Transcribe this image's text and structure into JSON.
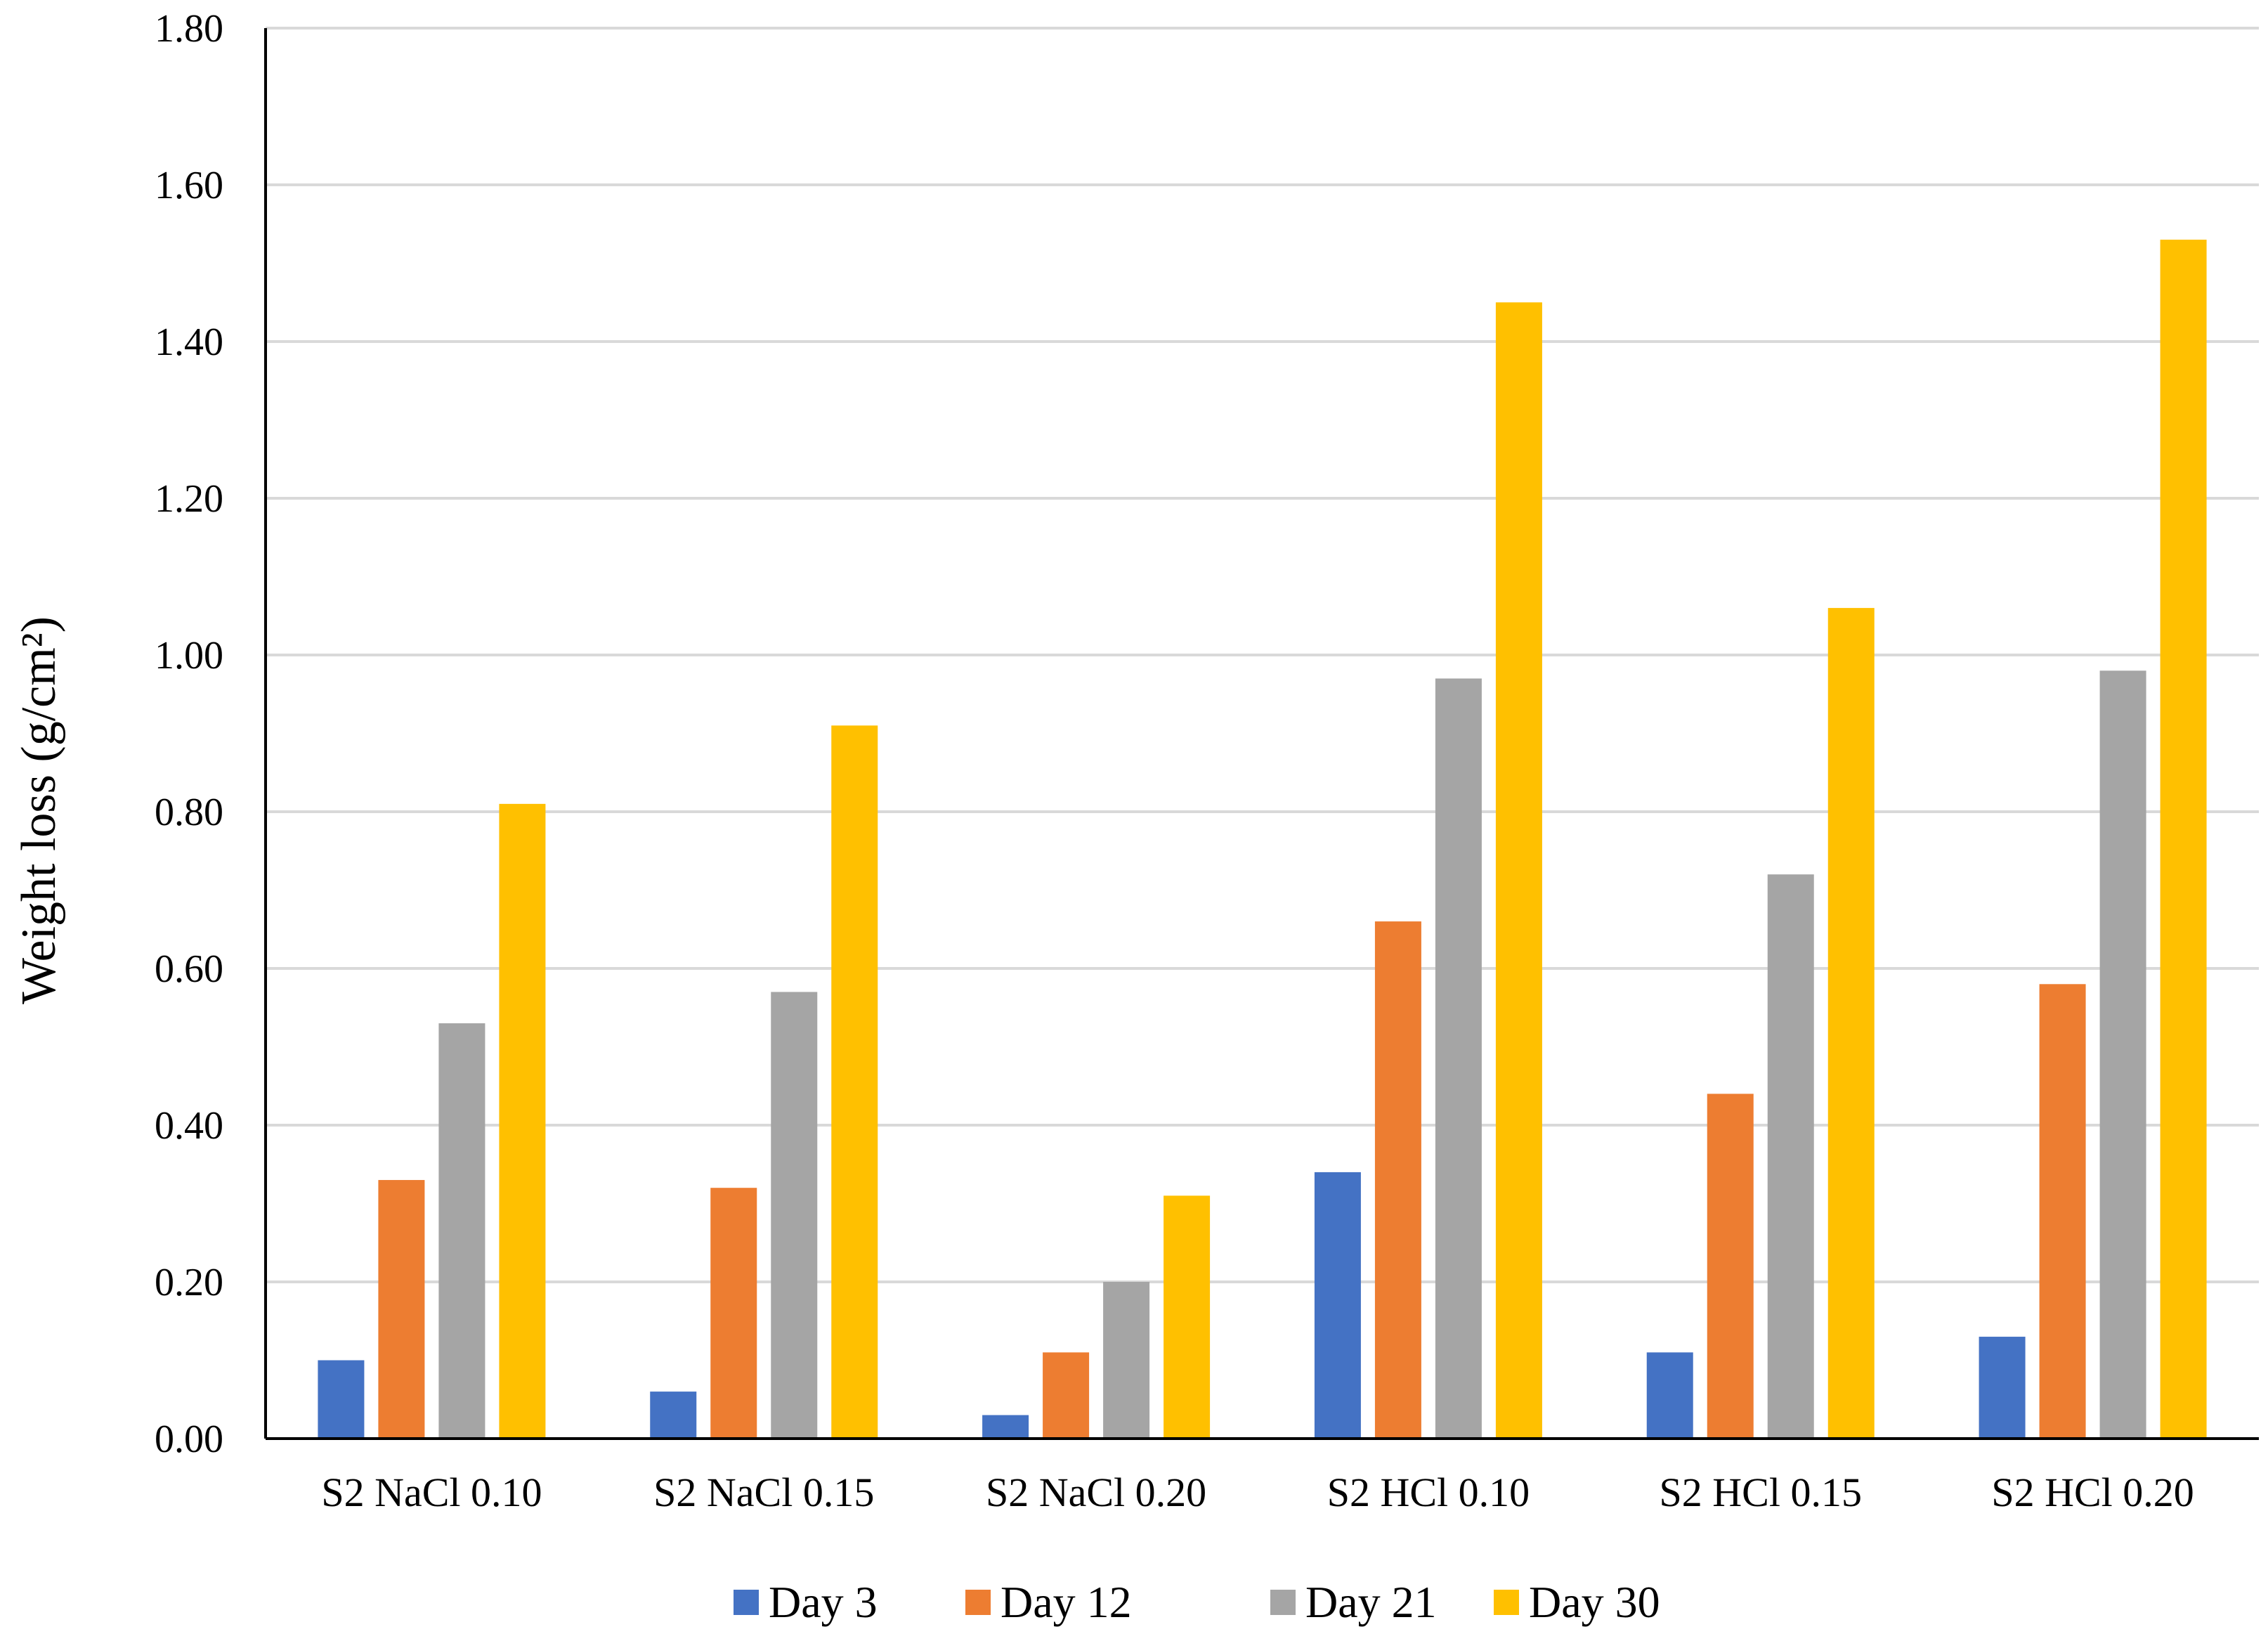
{
  "chart_data": {
    "type": "bar",
    "title": "",
    "xlabel": "",
    "ylabel": "Weight loss (g/cm²)",
    "ylim": [
      0,
      1.8
    ],
    "yticks": [
      "0.00",
      "0.20",
      "0.40",
      "0.60",
      "0.80",
      "1.00",
      "1.20",
      "1.40",
      "1.60",
      "1.80"
    ],
    "grid": true,
    "legend_position": "bottom",
    "categories": [
      "S2 NaCl 0.10",
      "S2 NaCl 0.15",
      "S2 NaCl 0.20",
      "S2 HCl 0.10",
      "S2 HCl 0.15",
      "S2 HCl 0.20"
    ],
    "series": [
      {
        "name": "Day 3",
        "color": "#4472c4",
        "values": [
          0.1,
          0.06,
          0.03,
          0.34,
          0.11,
          0.13
        ]
      },
      {
        "name": "Day 12",
        "color": "#ed7d31",
        "values": [
          0.33,
          0.32,
          0.11,
          0.66,
          0.44,
          0.58
        ]
      },
      {
        "name": "Day 21",
        "color": "#a5a5a5",
        "values": [
          0.53,
          0.57,
          0.2,
          0.97,
          0.72,
          0.98
        ]
      },
      {
        "name": "Day 30",
        "color": "#ffc000",
        "values": [
          0.81,
          0.91,
          0.31,
          1.45,
          1.06,
          1.53
        ]
      }
    ]
  }
}
